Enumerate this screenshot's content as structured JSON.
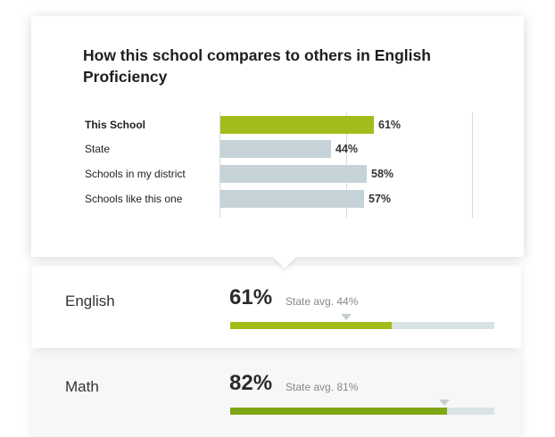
{
  "popover": {
    "title": "How this school compares to others in English Proficiency"
  },
  "chart_data": {
    "type": "bar",
    "orientation": "horizontal",
    "title": "How this school compares to others in English Proficiency",
    "categories": [
      "This School",
      "State",
      "Schools in my district",
      "Schools like this one"
    ],
    "values": [
      61,
      44,
      58,
      57
    ],
    "value_labels": [
      "61%",
      "44%",
      "58%",
      "57%"
    ],
    "xlim": [
      0,
      100
    ],
    "grid": true,
    "colors": {
      "primary": "#a1bd1c",
      "other": "#c5d3d8"
    }
  },
  "subjects": [
    {
      "name": "English",
      "score_label": "61%",
      "score": 61,
      "state_avg_label": "State avg. 44%",
      "state_avg": 44,
      "fill_color": "#a1bd1c"
    },
    {
      "name": "Math",
      "score_label": "82%",
      "score": 82,
      "state_avg_label": "State avg. 81%",
      "state_avg": 81,
      "fill_color": "#7fa614"
    }
  ]
}
